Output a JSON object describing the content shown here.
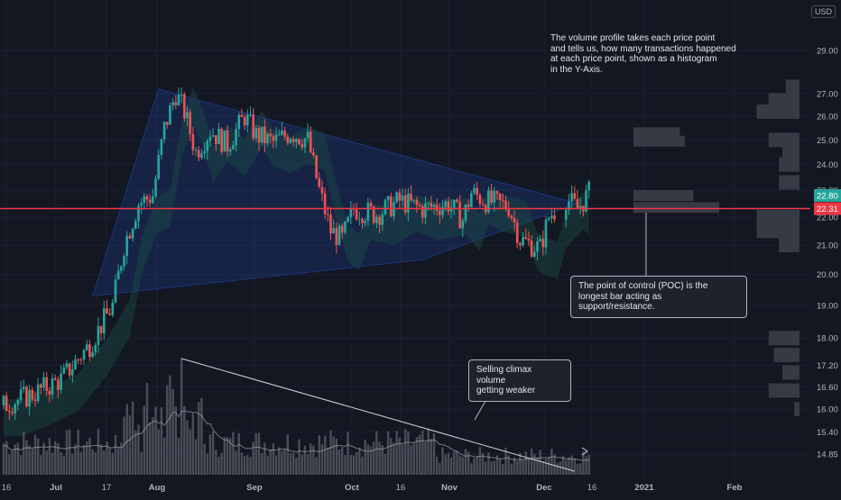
{
  "header": {
    "currency": "USD"
  },
  "annotations": {
    "volume_profile_note": [
      "The volume profile takes each price point",
      "and tells us, how many transactions happened",
      "at each price point, shown as a histogram",
      "in the Y-Axis."
    ],
    "poc_callout": [
      "The point of control (POC) is the",
      "longest bar acting as support/resistance."
    ],
    "volume_callout": [
      "Selling climax volume",
      "getting weaker"
    ]
  },
  "colors": {
    "background": "#131722",
    "up_candle": "#26a69a",
    "down_candle": "#ef5350",
    "poc_line": "#f23645",
    "triangle_fill": "#2962ff",
    "profile_bar": "#363a45",
    "volume_bar": "#5d606b",
    "grid": "#1c2030"
  },
  "chart_data": {
    "type": "candlestick",
    "grid": true,
    "y_axis": {
      "ticks": [
        "29.00",
        "27.00",
        "26.00",
        "25.00",
        "24.00",
        "23.00",
        "22.00",
        "21.00",
        "20.00",
        "19.00",
        "18.00",
        "17.20",
        "16.60",
        "16.00",
        "15.40",
        "14.85"
      ],
      "scale": "log",
      "range": [
        14.6,
        30.5
      ]
    },
    "x_axis": {
      "ticks": [
        "16",
        "Jul",
        "17",
        "Aug",
        "Sep",
        "Oct",
        "16",
        "Nov",
        "Dec",
        "16",
        "2021",
        "Feb"
      ],
      "bold_ticks": [
        "Jul",
        "Aug",
        "Sep",
        "Oct",
        "Nov",
        "Dec",
        "2021",
        "Feb"
      ]
    },
    "price_labels": [
      {
        "value": 22.8,
        "label": "22.80",
        "color": "#26a69a"
      },
      {
        "value": 22.31,
        "label": "22.31",
        "color": "#f23645"
      }
    ],
    "poc_price": 22.31,
    "triangle": [
      [
        31,
        19.3
      ],
      [
        54,
        27.2
      ],
      [
        200,
        22.5
      ],
      [
        146,
        20.5
      ]
    ],
    "volume_trendline": [
      [
        62,
        1.0
      ],
      [
        199,
        0.03
      ]
    ],
    "profile_main": [
      {
        "price": 22.8,
        "width": 0.35
      },
      {
        "price": 22.35,
        "width": 0.5
      },
      {
        "price": 25.3,
        "width": 0.27
      },
      {
        "price": 24.95,
        "width": 0.3
      }
    ],
    "profile_right": [
      {
        "price": 27.3,
        "width": 0.08
      },
      {
        "price": 26.7,
        "width": 0.18
      },
      {
        "price": 26.2,
        "width": 0.25
      },
      {
        "price": 25.0,
        "width": 0.18
      },
      {
        "price": 24.5,
        "width": 0.1
      },
      {
        "price": 24.0,
        "width": 0.12
      },
      {
        "price": 23.3,
        "width": 0.12
      },
      {
        "price": 22.0,
        "width": 0.25
      },
      {
        "price": 21.5,
        "width": 0.25
      },
      {
        "price": 21.0,
        "width": 0.12
      },
      {
        "price": 18.0,
        "width": 0.18
      },
      {
        "price": 17.5,
        "width": 0.15
      },
      {
        "price": 17.0,
        "width": 0.1
      },
      {
        "price": 16.5,
        "width": 0.18
      },
      {
        "price": 16.0,
        "width": 0.03
      }
    ]
  }
}
